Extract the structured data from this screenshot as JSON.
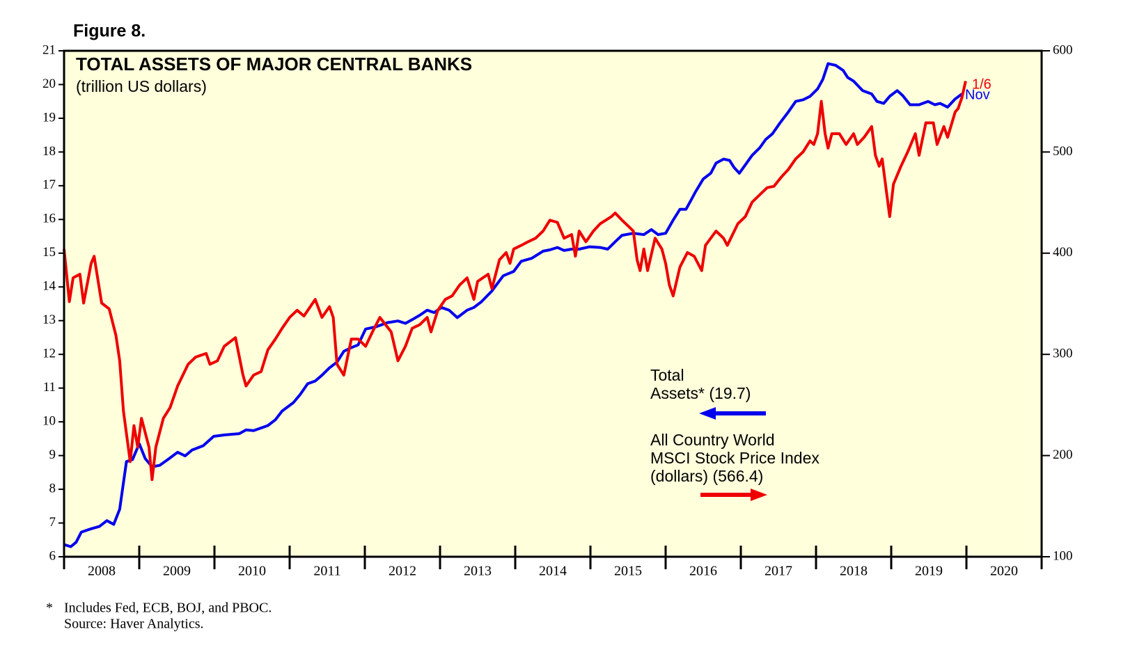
{
  "chart_data": {
    "type": "line",
    "figure_label": "Figure 8.",
    "title": "TOTAL ASSETS OF MAJOR CENTRAL BANKS",
    "subtitle": "(trillion US dollars)",
    "background": "#ffffdc",
    "xlim": [
      2008,
      2021
    ],
    "xticks": [
      {
        "value": 2008.5,
        "label": "2008"
      },
      {
        "value": 2009.5,
        "label": "2009"
      },
      {
        "value": 2010.5,
        "label": "2010"
      },
      {
        "value": 2011.5,
        "label": "2011"
      },
      {
        "value": 2012.5,
        "label": "2012"
      },
      {
        "value": 2013.5,
        "label": "2013"
      },
      {
        "value": 2014.5,
        "label": "2014"
      },
      {
        "value": 2015.5,
        "label": "2015"
      },
      {
        "value": 2016.5,
        "label": "2016"
      },
      {
        "value": 2017.5,
        "label": "2017"
      },
      {
        "value": 2018.5,
        "label": "2018"
      },
      {
        "value": 2019.5,
        "label": "2019"
      },
      {
        "value": 2020.5,
        "label": "2020"
      }
    ],
    "ylim": [
      6,
      21
    ],
    "yticks": [
      6,
      7,
      8,
      9,
      10,
      11,
      12,
      13,
      14,
      15,
      16,
      17,
      18,
      19,
      20,
      21
    ],
    "y2lim": [
      100,
      600
    ],
    "y2ticks": [
      100,
      200,
      300,
      400,
      500,
      600
    ],
    "series": [
      {
        "name": [
          "Total",
          "Assets* (19.7)"
        ],
        "color": "#0000ee",
        "x": [
          2008.0,
          2008.09,
          2008.16,
          2008.23,
          2008.36,
          2008.47,
          2008.57,
          2008.66,
          2008.74,
          2008.83,
          2008.91,
          2009.0,
          2009.08,
          2009.17,
          2009.27,
          2009.38,
          2009.51,
          2009.61,
          2009.7,
          2009.85,
          2009.99,
          2010.13,
          2010.33,
          2010.42,
          2010.52,
          2010.71,
          2010.81,
          2010.9,
          2011.05,
          2011.14,
          2011.24,
          2011.34,
          2011.43,
          2011.53,
          2011.63,
          2011.72,
          2011.82,
          2011.91,
          2012.01,
          2012.15,
          2012.3,
          2012.44,
          2012.54,
          2012.63,
          2012.73,
          2012.83,
          2012.92,
          2013.02,
          2013.12,
          2013.23,
          2013.36,
          2013.45,
          2013.55,
          2013.69,
          2013.84,
          2013.98,
          2014.08,
          2014.22,
          2014.37,
          2014.46,
          2014.56,
          2014.65,
          2014.75,
          2014.85,
          2014.99,
          2015.13,
          2015.23,
          2015.33,
          2015.42,
          2015.57,
          2015.71,
          2015.81,
          2015.9,
          2016.0,
          2016.1,
          2016.19,
          2016.27,
          2016.34,
          2016.4,
          2016.5,
          2016.6,
          2016.67,
          2016.77,
          2016.85,
          2016.91,
          2016.98,
          2017.06,
          2017.15,
          2017.25,
          2017.33,
          2017.42,
          2017.52,
          2017.63,
          2017.73,
          2017.83,
          2017.92,
          2018.02,
          2018.09,
          2018.16,
          2018.26,
          2018.36,
          2018.42,
          2018.5,
          2018.62,
          2018.74,
          2018.81,
          2018.9,
          2018.98,
          2019.08,
          2019.15,
          2019.25,
          2019.37,
          2019.49,
          2019.58,
          2019.65,
          2019.75,
          2019.85,
          2019.94
        ],
        "values": [
          6.36,
          6.3,
          6.43,
          6.73,
          6.83,
          6.9,
          7.07,
          6.96,
          7.41,
          8.82,
          8.88,
          9.35,
          8.91,
          8.67,
          8.71,
          8.88,
          9.1,
          8.99,
          9.16,
          9.29,
          9.57,
          9.61,
          9.65,
          9.76,
          9.74,
          9.89,
          10.06,
          10.32,
          10.57,
          10.81,
          11.13,
          11.21,
          11.38,
          11.6,
          11.77,
          12.09,
          12.2,
          12.28,
          12.75,
          12.82,
          12.94,
          12.99,
          12.92,
          13.03,
          13.16,
          13.31,
          13.24,
          13.39,
          13.31,
          13.09,
          13.31,
          13.39,
          13.56,
          13.88,
          14.33,
          14.46,
          14.76,
          14.85,
          15.06,
          15.1,
          15.17,
          15.08,
          15.12,
          15.12,
          15.19,
          15.17,
          15.12,
          15.34,
          15.53,
          15.59,
          15.55,
          15.7,
          15.55,
          15.59,
          15.98,
          16.3,
          16.3,
          16.58,
          16.83,
          17.2,
          17.37,
          17.67,
          17.79,
          17.75,
          17.54,
          17.37,
          17.62,
          17.9,
          18.12,
          18.37,
          18.54,
          18.86,
          19.18,
          19.5,
          19.55,
          19.65,
          19.87,
          20.15,
          20.62,
          20.57,
          20.42,
          20.21,
          20.1,
          19.82,
          19.72,
          19.5,
          19.44,
          19.65,
          19.82,
          19.68,
          19.4,
          19.4,
          19.5,
          19.4,
          19.44,
          19.33,
          19.57,
          19.72
        ]
      },
      {
        "name": [
          "All Country World",
          "MSCI Stock Price Index",
          "(dollars) (566.4)"
        ],
        "color": "#ee0000",
        "axis": "y2",
        "x": [
          2008.0,
          2008.07,
          2008.12,
          2008.21,
          2008.26,
          2008.36,
          2008.4,
          2008.5,
          2008.6,
          2008.69,
          2008.74,
          2008.79,
          2008.88,
          2008.93,
          2008.98,
          2009.03,
          2009.13,
          2009.17,
          2009.22,
          2009.32,
          2009.41,
          2009.51,
          2009.65,
          2009.75,
          2009.89,
          2009.94,
          2010.04,
          2010.13,
          2010.28,
          2010.38,
          2010.42,
          2010.52,
          2010.62,
          2010.71,
          2010.81,
          2010.9,
          2011.0,
          2011.1,
          2011.19,
          2011.34,
          2011.43,
          2011.53,
          2011.58,
          2011.63,
          2011.72,
          2011.82,
          2011.91,
          2012.01,
          2012.11,
          2012.2,
          2012.35,
          2012.44,
          2012.54,
          2012.63,
          2012.73,
          2012.83,
          2012.88,
          2012.97,
          2013.07,
          2013.16,
          2013.26,
          2013.36,
          2013.45,
          2013.5,
          2013.64,
          2013.69,
          2013.79,
          2013.88,
          2013.93,
          2013.98,
          2014.08,
          2014.17,
          2014.27,
          2014.37,
          2014.46,
          2014.56,
          2014.65,
          2014.75,
          2014.8,
          2014.85,
          2014.94,
          2015.04,
          2015.13,
          2015.28,
          2015.33,
          2015.42,
          2015.52,
          2015.57,
          2015.62,
          2015.66,
          2015.71,
          2015.76,
          2015.86,
          2015.95,
          2016.0,
          2016.05,
          2016.1,
          2016.19,
          2016.29,
          2016.38,
          2016.48,
          2016.53,
          2016.67,
          2016.77,
          2016.82,
          2016.96,
          2017.06,
          2017.15,
          2017.25,
          2017.35,
          2017.44,
          2017.54,
          2017.63,
          2017.73,
          2017.83,
          2017.92,
          2017.97,
          2018.02,
          2018.07,
          2018.12,
          2018.16,
          2018.21,
          2018.31,
          2018.4,
          2018.5,
          2018.55,
          2018.64,
          2018.74,
          2018.79,
          2018.84,
          2018.88,
          2018.93,
          2018.98,
          2019.03,
          2019.13,
          2019.22,
          2019.32,
          2019.37,
          2019.46,
          2019.56,
          2019.61,
          2019.7,
          2019.75,
          2019.85,
          2019.89,
          2019.94,
          2019.99
        ],
        "values": [
          404.1,
          352.1,
          375.6,
          379.2,
          350.7,
          389.9,
          397.0,
          350.7,
          345.0,
          318.7,
          293.7,
          243.9,
          194.0,
          229.6,
          208.3,
          236.8,
          208.3,
          176.2,
          208.3,
          236.8,
          247.4,
          268.8,
          290.2,
          297.3,
          300.9,
          290.2,
          293.7,
          308.0,
          316.5,
          279.5,
          268.8,
          279.5,
          283.0,
          304.4,
          315.1,
          325.8,
          336.5,
          343.6,
          337.9,
          354.3,
          336.5,
          347.2,
          336.5,
          290.2,
          279.5,
          315.1,
          315.1,
          308.0,
          323.6,
          336.5,
          322.2,
          293.7,
          308.0,
          325.8,
          329.3,
          336.5,
          322.2,
          343.6,
          354.3,
          357.8,
          368.5,
          375.6,
          354.3,
          372.1,
          379.2,
          365.0,
          393.4,
          400.6,
          389.9,
          404.1,
          407.7,
          411.3,
          414.8,
          421.9,
          432.6,
          430.5,
          414.8,
          418.4,
          397.0,
          421.9,
          411.3,
          421.9,
          429.1,
          436.2,
          439.7,
          432.6,
          425.5,
          421.9,
          393.4,
          382.8,
          404.1,
          382.8,
          414.8,
          404.1,
          389.9,
          368.5,
          357.8,
          386.3,
          400.6,
          397.0,
          382.8,
          407.7,
          421.9,
          414.8,
          407.7,
          429.1,
          436.2,
          450.4,
          457.6,
          464.7,
          466.1,
          475.4,
          482.5,
          493.2,
          500.3,
          511.0,
          507.4,
          518.1,
          550.1,
          518.1,
          503.8,
          518.1,
          518.1,
          507.4,
          518.1,
          507.4,
          514.5,
          525.2,
          496.7,
          486.0,
          493.2,
          464.7,
          436.2,
          468.2,
          486.0,
          500.3,
          518.1,
          496.7,
          528.8,
          528.8,
          507.4,
          525.2,
          514.5,
          539.5,
          543.0,
          553.7,
          570.1
        ]
      }
    ],
    "annotations": [
      {
        "text": "1/6",
        "color": "#ee0000"
      },
      {
        "text": "Nov",
        "color": "#0000ee"
      }
    ],
    "footnote": {
      "marker": "*",
      "lines": [
        "Includes Fed, ECB, BOJ, and PBOC.",
        "Source: Haver Analytics."
      ]
    }
  }
}
